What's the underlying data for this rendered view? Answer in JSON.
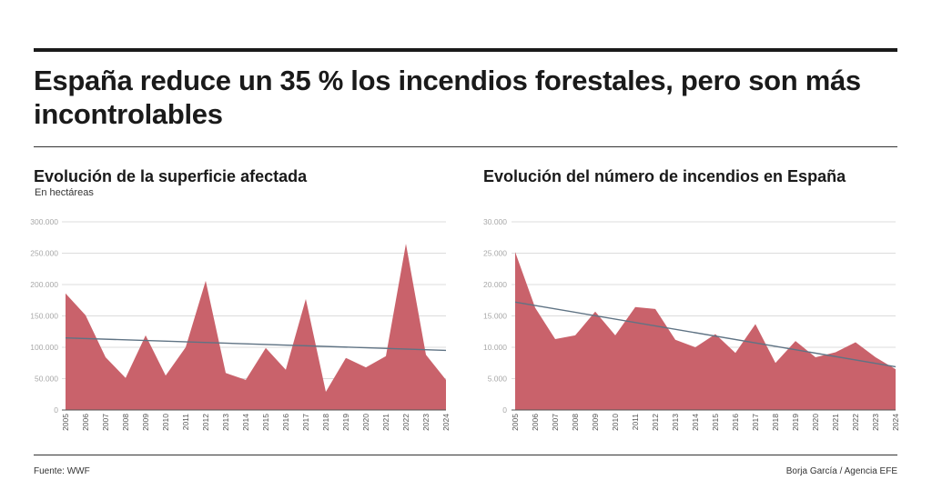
{
  "headline": "España reduce un 35 % los incendios forestales, pero son más incontrolables",
  "footer": {
    "source": "Fuente: WWF",
    "credit": "Borja García / Agencia EFE"
  },
  "colors": {
    "area": "#c9626b",
    "trend": "#5f7384",
    "grid": "#dcdcdc"
  },
  "chart_data": [
    {
      "type": "area",
      "title": "Evolución de la superficie afectada",
      "subtitle": "En hectáreas",
      "xlabel": "",
      "ylabel": "",
      "x": [
        "2005",
        "2006",
        "2007",
        "2008",
        "2009",
        "2010",
        "2011",
        "2012",
        "2013",
        "2014",
        "2015",
        "2016",
        "2017",
        "2018",
        "2019",
        "2020",
        "2021",
        "2022",
        "2023",
        "2024"
      ],
      "series": [
        {
          "name": "Superficie afectada (ha)",
          "values": [
            186000,
            151000,
            84000,
            51000,
            119000,
            55000,
            100000,
            206000,
            59000,
            48000,
            99000,
            64000,
            177000,
            29000,
            83000,
            68000,
            86000,
            265000,
            88000,
            48000
          ]
        }
      ],
      "trend": {
        "start": 115000,
        "end": 95000
      },
      "ylim": [
        0,
        300000
      ],
      "yticks": [
        0,
        50000,
        100000,
        150000,
        200000,
        250000,
        300000
      ],
      "ytick_labels": [
        "0",
        "50.000",
        "100.000",
        "150.000",
        "200.000",
        "250.000",
        "300.000"
      ],
      "grid": true
    },
    {
      "type": "area",
      "title": "Evolución del número de incendios en España",
      "subtitle": "",
      "xlabel": "",
      "ylabel": "",
      "x": [
        "2005",
        "2006",
        "2007",
        "2008",
        "2009",
        "2010",
        "2011",
        "2012",
        "2013",
        "2014",
        "2015",
        "2016",
        "2017",
        "2018",
        "2019",
        "2020",
        "2021",
        "2022",
        "2023",
        "2024"
      ],
      "series": [
        {
          "name": "Número de incendios",
          "values": [
            25200,
            16300,
            11300,
            11900,
            15700,
            11900,
            16400,
            16100,
            11200,
            10000,
            12100,
            9100,
            13700,
            7500,
            11000,
            8400,
            9200,
            10800,
            8400,
            6500
          ]
        }
      ],
      "trend": {
        "start": 17200,
        "end": 6900
      },
      "ylim": [
        0,
        30000
      ],
      "yticks": [
        0,
        5000,
        10000,
        15000,
        20000,
        25000,
        30000
      ],
      "ytick_labels": [
        "0",
        "5.000",
        "10.000",
        "15.000",
        "20.000",
        "25.000",
        "30.000"
      ],
      "grid": true
    }
  ]
}
